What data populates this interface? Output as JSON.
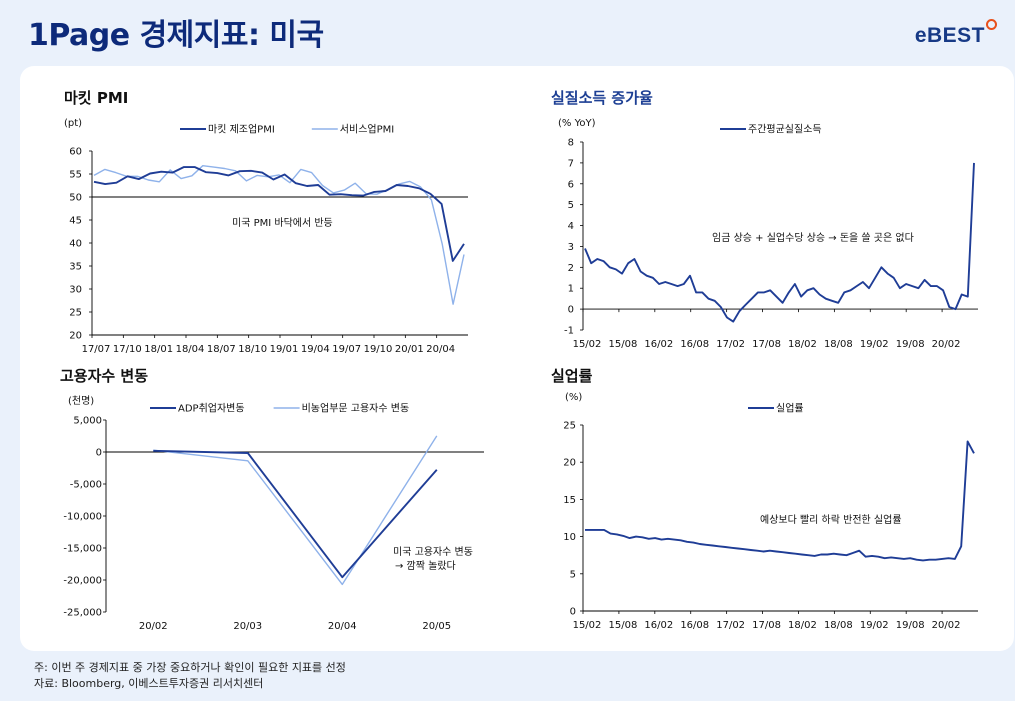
{
  "header": {
    "title": "1Page 경제지표: 미국",
    "logo_text": "eBEST"
  },
  "footer": {
    "note": "주: 이번 주 경제지표 중 가장 중요하거나 확인이 필요한 지표를 선정",
    "source": "자료: Bloomberg, 이베스트투자증권 리서치센터"
  },
  "colors": {
    "primary": "#1f3d96",
    "secondary": "#8fb2ea",
    "title": "#0d2a7a",
    "accent": "#e8501b"
  },
  "chart_data": [
    {
      "id": "pmi",
      "type": "line",
      "title": "마킷 PMI",
      "unit": "(pt)",
      "annotation": "미국 PMI 바닥에서 반등",
      "ylim": [
        20,
        60
      ],
      "yticks": [
        "60",
        "55",
        "50",
        "45",
        "40",
        "35",
        "30",
        "25",
        "20"
      ],
      "yticks_values": [
        60,
        55,
        50,
        45,
        40,
        35,
        30,
        25,
        20
      ],
      "xtick_labels": [
        "17/07",
        "17/10",
        "18/01",
        "18/04",
        "18/07",
        "18/10",
        "19/01",
        "19/04",
        "19/07",
        "19/10",
        "20/01",
        "20/04"
      ],
      "reference_line": 50,
      "series": [
        {
          "name": "마킷 제조업PMI",
          "color": "#1f3d96",
          "values": [
            53.3,
            52.8,
            53.1,
            54.5,
            53.9,
            55.1,
            55.5,
            55.3,
            56.5,
            56.5,
            55.4,
            55.2,
            54.7,
            55.6,
            55.7,
            55.3,
            53.8,
            54.9,
            53.0,
            52.4,
            52.6,
            50.5,
            50.6,
            50.4,
            50.3,
            51.1,
            51.3,
            52.6,
            52.4,
            51.9,
            50.7,
            48.5,
            36.1,
            39.8
          ]
        },
        {
          "name": "서비스업PMI",
          "color": "#8fb2ea",
          "values": [
            54.7,
            56.0,
            55.3,
            54.5,
            54.5,
            53.7,
            53.3,
            55.9,
            54.0,
            54.6,
            56.8,
            56.5,
            56.2,
            55.7,
            53.5,
            54.7,
            54.4,
            54.8,
            53.1,
            56.0,
            55.3,
            52.5,
            50.9,
            51.5,
            53.0,
            50.7,
            50.6,
            51.6,
            52.8,
            53.4,
            52.2,
            49.4,
            39.8,
            26.7,
            37.5
          ]
        }
      ]
    },
    {
      "id": "real-income",
      "type": "line",
      "title": "실질소득 증가율",
      "unit": "(% YoY)",
      "annotation": "임금 상승 + 실업수당 상승 → 돈을 쓸 곳은 없다",
      "ylim": [
        -1,
        8
      ],
      "yticks": [
        "8",
        "7",
        "6",
        "5",
        "4",
        "3",
        "2",
        "1",
        "0",
        "-1"
      ],
      "yticks_values": [
        8,
        7,
        6,
        5,
        4,
        3,
        2,
        1,
        0,
        -1
      ],
      "xtick_labels": [
        "15/02",
        "15/08",
        "16/02",
        "16/08",
        "17/02",
        "17/08",
        "18/02",
        "18/08",
        "19/02",
        "19/08",
        "20/02"
      ],
      "series": [
        {
          "name": "주간평균실질소득",
          "color": "#1f3d96",
          "values": [
            2.9,
            2.2,
            2.4,
            2.3,
            2.0,
            1.9,
            1.7,
            2.2,
            2.4,
            1.8,
            1.6,
            1.5,
            1.2,
            1.3,
            1.2,
            1.1,
            1.2,
            1.6,
            0.8,
            0.8,
            0.5,
            0.4,
            0.1,
            -0.4,
            -0.6,
            -0.1,
            0.2,
            0.5,
            0.8,
            0.8,
            0.9,
            0.6,
            0.3,
            0.8,
            1.2,
            0.6,
            0.9,
            1.0,
            0.7,
            0.5,
            0.4,
            0.3,
            0.8,
            0.9,
            1.1,
            1.3,
            1.0,
            1.5,
            2.0,
            1.7,
            1.5,
            1.0,
            1.2,
            1.1,
            1.0,
            1.4,
            1.1,
            1.1,
            0.9,
            0.1,
            0.0,
            0.7,
            0.6,
            7.0
          ]
        }
      ]
    },
    {
      "id": "employment",
      "type": "line",
      "title": "고용자수 변동",
      "unit": "(천명)",
      "annotation_lines": [
        "미국 고용자수 변동",
        "→ 깜짝 놀랐다"
      ],
      "ylim": [
        -25000,
        5000
      ],
      "yticks": [
        "5,000",
        "0",
        "-5,000",
        "-10,000",
        "-15,000",
        "-20,000",
        "-25,000"
      ],
      "yticks_values": [
        5000,
        0,
        -5000,
        -10000,
        -15000,
        -20000,
        -25000
      ],
      "categories": [
        "20/02",
        "20/03",
        "20/04",
        "20/05"
      ],
      "series": [
        {
          "name": "ADP취업자변동",
          "color": "#1f3d96",
          "values": [
            183,
            -149,
            -19557,
            -2760
          ]
        },
        {
          "name": "비농업부문 고용자수 변동",
          "color": "#8fb2ea",
          "values": [
            275,
            -1373,
            -20687,
            2509
          ]
        }
      ]
    },
    {
      "id": "unemployment",
      "type": "line",
      "title": "실업률",
      "unit": "(%)",
      "annotation": "예상보다 빨리 하락 반전한 실업률",
      "ylim": [
        0,
        25
      ],
      "yticks": [
        "25",
        "20",
        "15",
        "10",
        "5",
        "0"
      ],
      "yticks_values": [
        25,
        20,
        15,
        10,
        5,
        0
      ],
      "xtick_labels": [
        "15/02",
        "15/08",
        "16/02",
        "16/08",
        "17/02",
        "17/08",
        "18/02",
        "18/08",
        "19/02",
        "19/08",
        "20/02"
      ],
      "series": [
        {
          "name": "실업률",
          "color": "#1f3d96",
          "values": [
            10.9,
            10.9,
            10.9,
            10.9,
            10.4,
            10.3,
            10.1,
            9.8,
            10.0,
            9.9,
            9.7,
            9.8,
            9.6,
            9.7,
            9.6,
            9.5,
            9.3,
            9.2,
            9.0,
            8.9,
            8.8,
            8.7,
            8.6,
            8.5,
            8.4,
            8.3,
            8.2,
            8.1,
            8.0,
            8.1,
            8.0,
            7.9,
            7.8,
            7.7,
            7.6,
            7.5,
            7.4,
            7.6,
            7.6,
            7.7,
            7.6,
            7.5,
            7.8,
            8.1,
            7.3,
            7.4,
            7.3,
            7.1,
            7.2,
            7.1,
            7.0,
            7.1,
            6.9,
            6.8,
            6.9,
            6.9,
            7.0,
            7.1,
            7.0,
            8.7,
            22.8,
            21.2
          ]
        }
      ]
    }
  ]
}
